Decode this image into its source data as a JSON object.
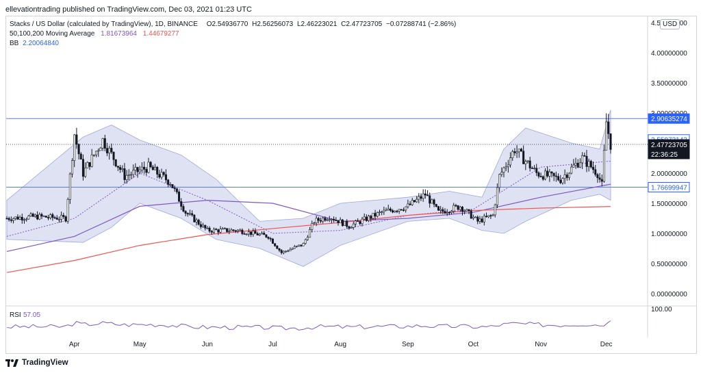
{
  "header": {
    "publish_text": "ellevationtrading published on TradingView.com, Dec 03, 2021 01:23 UTC"
  },
  "legend": {
    "symbol": "Stacks / US Dollar (calculated by TradingView), 1D, BINANCE",
    "ohlc": {
      "o": "O2.54936770",
      "h": "H2.56256073",
      "l": "L2.46223021",
      "c": "C2.47723705",
      "chg": "−0.07288741 (−2.86%)"
    },
    "ma_label": "50,100,200 Moving Average",
    "ma_values": [
      "1.81673964",
      "1.44679277"
    ],
    "bb_label": "BB",
    "bb_value": "2.20064840"
  },
  "axis": {
    "currency": "USD",
    "price_ticks": [
      "4.50000000",
      "4.00000000",
      "3.50000000",
      "3.00000000",
      "2.50000000",
      "2.00000000",
      "1.50000000",
      "1.00000000",
      "0.50000000",
      "0.00000000"
    ],
    "time_ticks": [
      "Apr",
      "May",
      "Jun",
      "Jul",
      "Aug",
      "Sep",
      "Oct",
      "Nov",
      "Dec"
    ],
    "rsi_tick": "100.00"
  },
  "price_tags": [
    {
      "text": "2.90635274",
      "style": "blue"
    },
    {
      "text": "2.55973143",
      "style": "outline"
    },
    {
      "text": "2.47723705",
      "style": "dark"
    },
    {
      "text": "22:36:25",
      "style": "dark"
    },
    {
      "text": "1.76699947",
      "style": "outline"
    }
  ],
  "rsi": {
    "label": "RSI",
    "value": "57.05"
  },
  "footer": {
    "brand": "TradingView"
  },
  "colors": {
    "candle": "#131722",
    "ma_long": "#7e57c2",
    "ma_short": "#ef5350",
    "bb_fill": "#c5cae9",
    "bb_mid": "#7e57c2",
    "hline": "#5b7be6",
    "rsi": "#7e57c2"
  },
  "chart_data": {
    "type": "candlestick",
    "x_range": [
      "2021-03-01",
      "2021-12-03"
    ],
    "ylim": [
      0,
      4.5
    ],
    "horizontal_levels": [
      2.90635274,
      1.76699947
    ],
    "last_price": 2.47723705,
    "close_path": [
      {
        "date": "2021-03-01",
        "close": 1.25
      },
      {
        "date": "2021-03-15",
        "close": 1.28
      },
      {
        "date": "2021-03-28",
        "close": 1.25
      },
      {
        "date": "2021-04-01",
        "close": 2.65
      },
      {
        "date": "2021-04-05",
        "close": 2.0
      },
      {
        "date": "2021-04-14",
        "close": 2.55
      },
      {
        "date": "2021-04-24",
        "close": 1.95
      },
      {
        "date": "2021-05-05",
        "close": 2.1
      },
      {
        "date": "2021-05-15",
        "close": 1.85
      },
      {
        "date": "2021-05-22",
        "close": 1.35
      },
      {
        "date": "2021-06-01",
        "close": 1.05
      },
      {
        "date": "2021-06-15",
        "close": 1.05
      },
      {
        "date": "2021-06-29",
        "close": 0.95
      },
      {
        "date": "2021-07-05",
        "close": 0.68
      },
      {
        "date": "2021-07-15",
        "close": 0.82
      },
      {
        "date": "2021-07-20",
        "close": 1.2
      },
      {
        "date": "2021-07-27",
        "close": 1.28
      },
      {
        "date": "2021-08-05",
        "close": 1.12
      },
      {
        "date": "2021-08-20",
        "close": 1.35
      },
      {
        "date": "2021-09-01",
        "close": 1.45
      },
      {
        "date": "2021-09-09",
        "close": 1.65
      },
      {
        "date": "2021-09-15",
        "close": 1.35
      },
      {
        "date": "2021-09-25",
        "close": 1.45
      },
      {
        "date": "2021-10-03",
        "close": 1.2
      },
      {
        "date": "2021-10-10",
        "close": 1.3
      },
      {
        "date": "2021-10-13",
        "close": 1.95
      },
      {
        "date": "2021-10-20",
        "close": 2.4
      },
      {
        "date": "2021-10-30",
        "close": 2.0
      },
      {
        "date": "2021-11-10",
        "close": 1.9
      },
      {
        "date": "2021-11-20",
        "close": 2.25
      },
      {
        "date": "2021-11-27",
        "close": 2.0
      },
      {
        "date": "2021-11-29",
        "close": 1.8
      },
      {
        "date": "2021-12-01",
        "close": 2.85
      },
      {
        "date": "2021-12-03",
        "close": 2.47723705
      }
    ],
    "ma_50_path": [
      {
        "date": "2021-03-01",
        "value": 0.95
      },
      {
        "date": "2021-04-01",
        "value": 1.25
      },
      {
        "date": "2021-05-01",
        "value": 2.0
      },
      {
        "date": "2021-06-01",
        "value": 1.55
      },
      {
        "date": "2021-07-01",
        "value": 1.0
      },
      {
        "date": "2021-08-01",
        "value": 1.05
      },
      {
        "date": "2021-09-01",
        "value": 1.3
      },
      {
        "date": "2021-10-01",
        "value": 1.4
      },
      {
        "date": "2021-11-01",
        "value": 2.1
      },
      {
        "date": "2021-12-03",
        "value": 2.2
      }
    ],
    "ma_100_path": [
      {
        "date": "2021-03-01",
        "value": 0.7
      },
      {
        "date": "2021-04-01",
        "value": 0.95
      },
      {
        "date": "2021-05-01",
        "value": 1.45
      },
      {
        "date": "2021-06-01",
        "value": 1.55
      },
      {
        "date": "2021-07-01",
        "value": 1.5
      },
      {
        "date": "2021-08-01",
        "value": 1.2
      },
      {
        "date": "2021-09-01",
        "value": 1.25
      },
      {
        "date": "2021-10-01",
        "value": 1.35
      },
      {
        "date": "2021-11-01",
        "value": 1.6
      },
      {
        "date": "2021-12-03",
        "value": 1.81673964
      }
    ],
    "ma_200_path": [
      {
        "date": "2021-03-01",
        "value": 0.35
      },
      {
        "date": "2021-04-01",
        "value": 0.55
      },
      {
        "date": "2021-05-01",
        "value": 0.8
      },
      {
        "date": "2021-06-01",
        "value": 0.98
      },
      {
        "date": "2021-07-01",
        "value": 1.08
      },
      {
        "date": "2021-08-01",
        "value": 1.18
      },
      {
        "date": "2021-09-01",
        "value": 1.3
      },
      {
        "date": "2021-10-01",
        "value": 1.38
      },
      {
        "date": "2021-11-01",
        "value": 1.42
      },
      {
        "date": "2021-12-03",
        "value": 1.44679277
      }
    ],
    "bb_upper_path": [
      {
        "date": "2021-03-01",
        "value": 1.55
      },
      {
        "date": "2021-04-05",
        "value": 2.6
      },
      {
        "date": "2021-04-18",
        "value": 2.8
      },
      {
        "date": "2021-05-01",
        "value": 2.55
      },
      {
        "date": "2021-05-20",
        "value": 2.3
      },
      {
        "date": "2021-06-05",
        "value": 1.9
      },
      {
        "date": "2021-06-25",
        "value": 1.2
      },
      {
        "date": "2021-07-15",
        "value": 1.25
      },
      {
        "date": "2021-08-01",
        "value": 1.5
      },
      {
        "date": "2021-09-01",
        "value": 1.6
      },
      {
        "date": "2021-09-20",
        "value": 1.7
      },
      {
        "date": "2021-10-05",
        "value": 1.6
      },
      {
        "date": "2021-10-15",
        "value": 2.4
      },
      {
        "date": "2021-10-25",
        "value": 2.75
      },
      {
        "date": "2021-11-15",
        "value": 2.5
      },
      {
        "date": "2021-11-28",
        "value": 2.4
      },
      {
        "date": "2021-12-03",
        "value": 3.05
      }
    ],
    "bb_lower_path": [
      {
        "date": "2021-03-01",
        "value": 0.9
      },
      {
        "date": "2021-04-05",
        "value": 0.85
      },
      {
        "date": "2021-04-18",
        "value": 1.1
      },
      {
        "date": "2021-05-01",
        "value": 1.5
      },
      {
        "date": "2021-05-20",
        "value": 1.25
      },
      {
        "date": "2021-06-05",
        "value": 0.9
      },
      {
        "date": "2021-06-25",
        "value": 0.75
      },
      {
        "date": "2021-07-15",
        "value": 0.45
      },
      {
        "date": "2021-08-01",
        "value": 0.8
      },
      {
        "date": "2021-09-01",
        "value": 1.2
      },
      {
        "date": "2021-09-20",
        "value": 1.25
      },
      {
        "date": "2021-10-05",
        "value": 1.05
      },
      {
        "date": "2021-10-15",
        "value": 1.0
      },
      {
        "date": "2021-10-25",
        "value": 1.2
      },
      {
        "date": "2021-11-15",
        "value": 1.55
      },
      {
        "date": "2021-11-28",
        "value": 1.65
      },
      {
        "date": "2021-12-03",
        "value": 1.55
      }
    ],
    "rsi_value": 57.05,
    "rsi_ylim": [
      0,
      100
    ]
  }
}
